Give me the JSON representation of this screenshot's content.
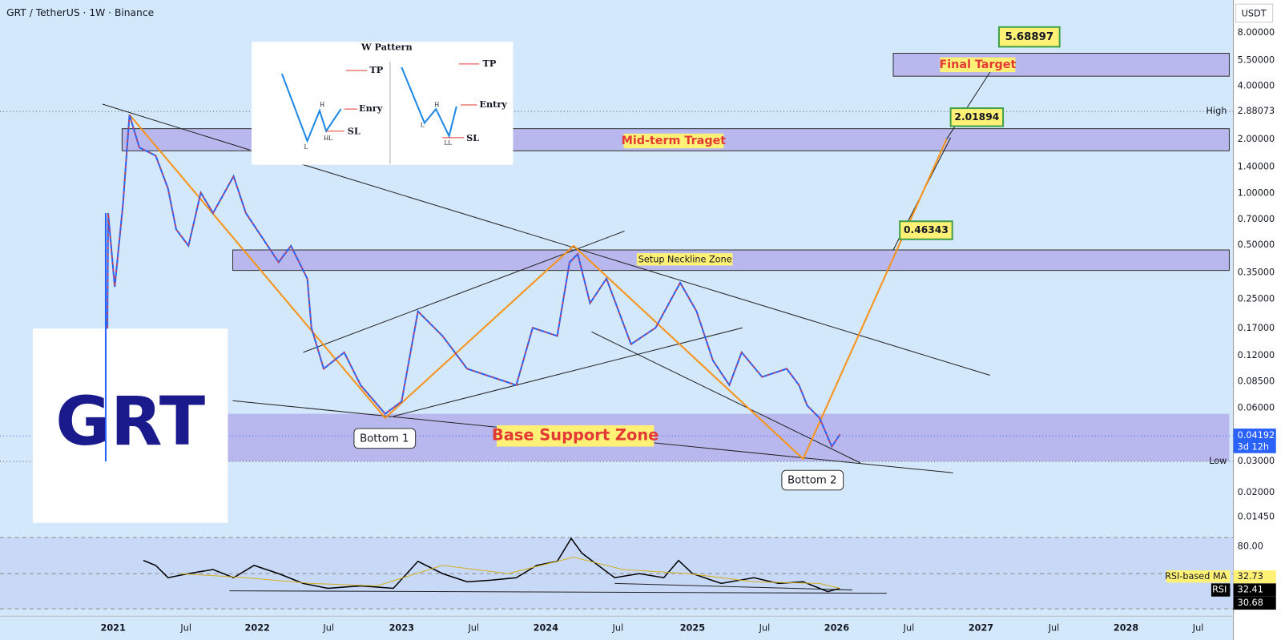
{
  "header": {
    "title": "GRT / TetherUS · 1W · Binance",
    "currency": "USDT"
  },
  "price_axis": [
    "8.00000",
    "5.50000",
    "4.00000",
    "2.00000",
    "1.40000",
    "1.00000",
    "0.70000",
    "0.50000",
    "0.35000",
    "0.25000",
    "0.17000",
    "0.12000",
    "0.08500",
    "0.06000",
    "0.02000",
    "0.01450"
  ],
  "markers": {
    "high_label": "High",
    "high_value": "2.88073",
    "low_label": "Low",
    "low_value": "0.03000",
    "last_price": "0.04192",
    "countdown": "3d 12h"
  },
  "rsi": {
    "level": "80.00",
    "ma_label": "RSI-based MA",
    "ma_value": "32.73",
    "rsi_label": "RSI",
    "rsi_value": "32.41",
    "low_value": "30.68"
  },
  "time_axis": [
    "2021",
    "Jul",
    "2022",
    "Jul",
    "2023",
    "Jul",
    "2024",
    "Jul",
    "2025",
    "Jul",
    "2026",
    "Jul",
    "2027",
    "Jul",
    "2028",
    "Jul"
  ],
  "annotations": {
    "final_target": "Final Target",
    "final_value": "5.68897",
    "mid_target": "Mid-term Traget",
    "mid_value": "2.01894",
    "neckline": "Setup Neckline Zone",
    "neck_value": "0.46343",
    "base": "Base Support Zone",
    "bottom1": "Bottom 1",
    "bottom2": "Bottom 2",
    "logo": "GRT"
  },
  "w_pattern": {
    "title": "W Pattern",
    "left": {
      "tp": "TP",
      "entry": "Enry",
      "sl": "SL",
      "h": "H",
      "hl": "HL",
      "l": "L"
    },
    "right": {
      "tp": "TP",
      "entry": "Entry",
      "sl": "SL",
      "h": "H",
      "ll": "LL",
      "l": "L"
    }
  }
}
